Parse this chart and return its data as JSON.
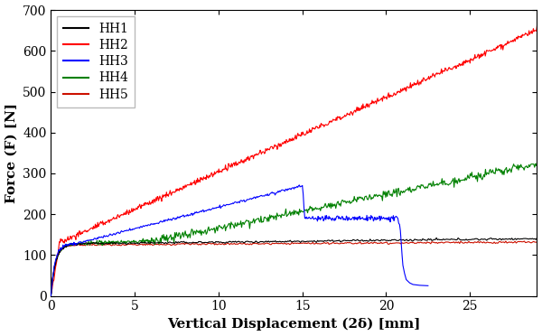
{
  "title": "",
  "xlabel": "Vertical Displacement (2δ) [mm]",
  "ylabel": "Force (F) [N]",
  "xlim": [
    0,
    29
  ],
  "ylim": [
    0,
    700
  ],
  "xticks": [
    0,
    5,
    10,
    15,
    20,
    25
  ],
  "yticks": [
    0,
    100,
    200,
    300,
    400,
    500,
    600,
    700
  ],
  "legend_labels": [
    "HH1",
    "HH2",
    "HH3",
    "HH4",
    "HH5"
  ],
  "colors": {
    "HH1": "#000000",
    "HH2": "#ff0000",
    "HH3": "#0000ff",
    "HH4": "#008000",
    "HH5": "#cc1100"
  },
  "linewidth": 0.8,
  "background_color": "#ffffff",
  "grid": false,
  "font_family": "DejaVu Serif",
  "fontsize_axis": 11,
  "fontsize_tick": 10,
  "fontsize_legend": 10
}
